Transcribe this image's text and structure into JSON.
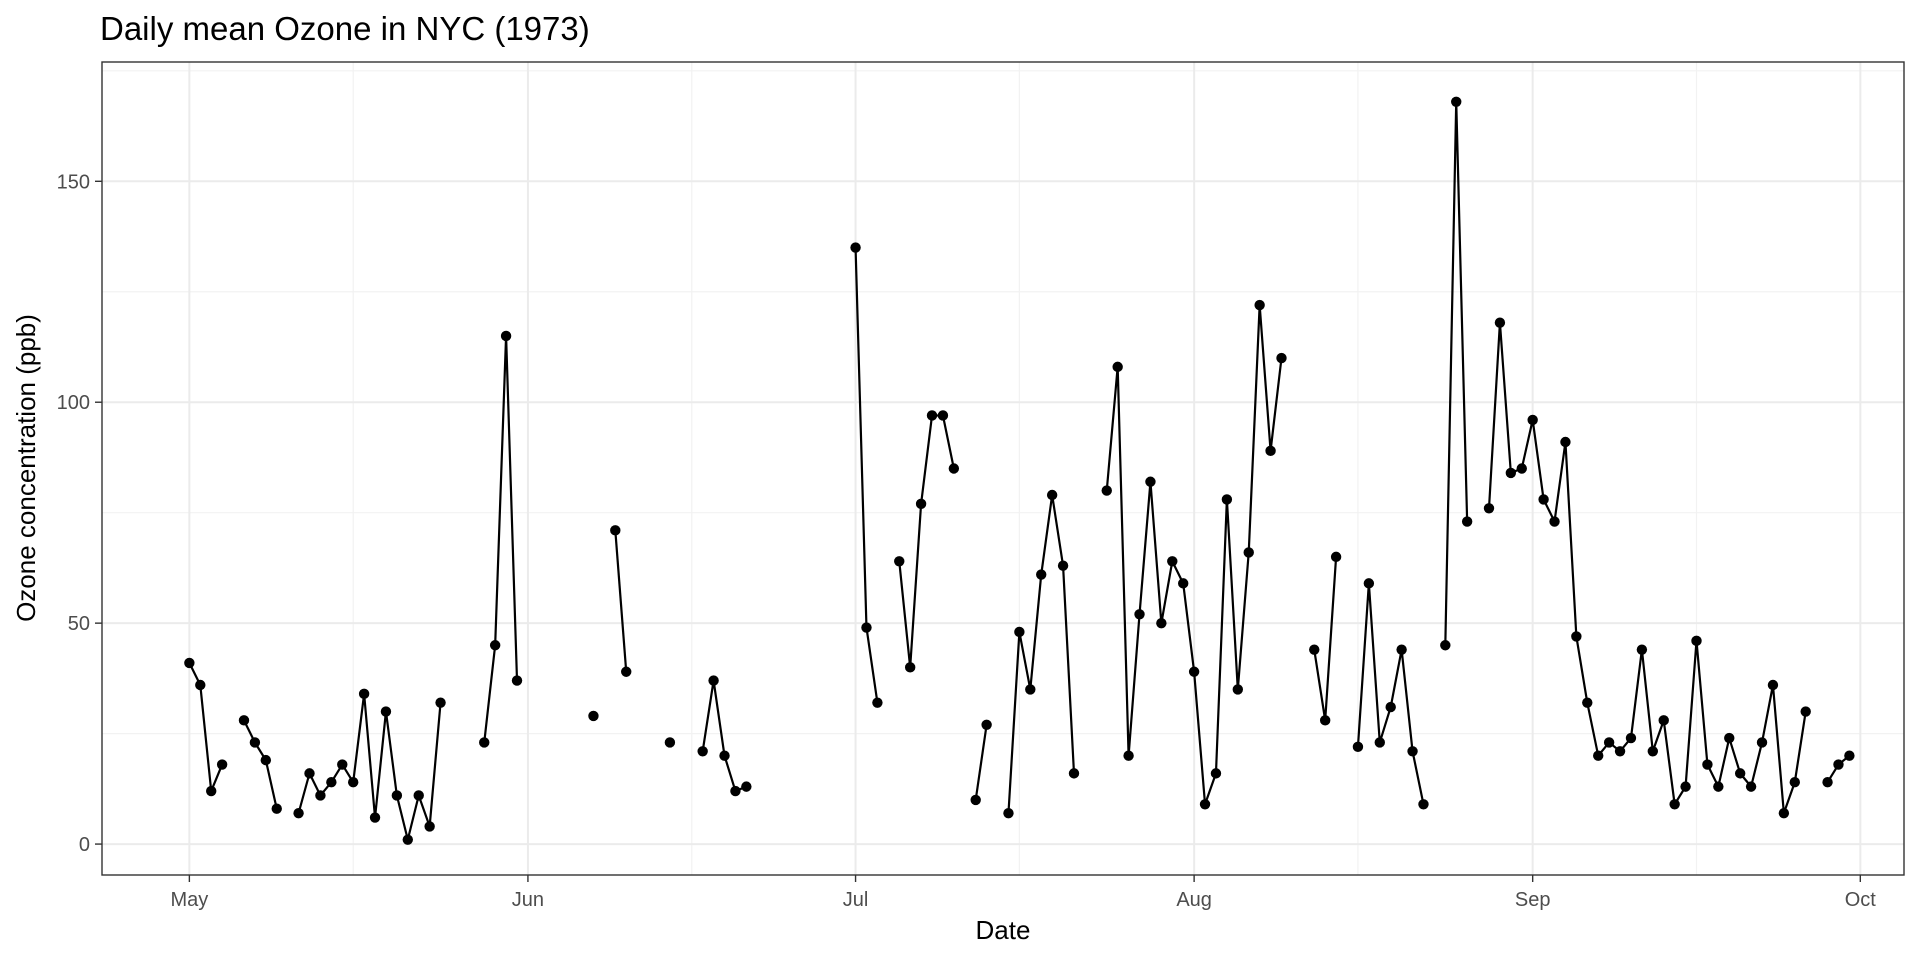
{
  "chart_data": {
    "type": "line",
    "title": "Daily mean Ozone in NYC (1973)",
    "xlabel": "Date",
    "ylabel": "Ozone concentration (ppb)",
    "x_tick_labels": [
      "May",
      "Jun",
      "Jul",
      "Aug",
      "Sep",
      "Oct"
    ],
    "y_tick_labels": [
      "0",
      "50",
      "100",
      "150"
    ],
    "y_ticks": [
      0,
      50,
      100,
      150
    ],
    "xlim": [
      "1973-04-23",
      "1973-10-05"
    ],
    "ylim": [
      -7,
      177
    ],
    "grid": true,
    "legend": "none",
    "colors": {
      "line": "#000000",
      "point": "#000000",
      "grid": "#ebebeb",
      "border": "#333333"
    },
    "series": [
      {
        "dates": [
          "1973-05-01",
          "1973-05-02",
          "1973-05-03",
          "1973-05-04",
          "1973-05-05",
          "1973-05-06",
          "1973-05-07",
          "1973-05-08",
          "1973-05-09",
          "1973-05-10",
          "1973-05-11",
          "1973-05-12",
          "1973-05-13",
          "1973-05-14",
          "1973-05-15",
          "1973-05-16",
          "1973-05-17",
          "1973-05-18",
          "1973-05-19",
          "1973-05-20",
          "1973-05-21",
          "1973-05-22",
          "1973-05-23",
          "1973-05-24",
          "1973-05-25",
          "1973-05-26",
          "1973-05-27",
          "1973-05-28",
          "1973-05-29",
          "1973-05-30",
          "1973-05-31",
          "1973-06-01",
          "1973-06-02",
          "1973-06-03",
          "1973-06-04",
          "1973-06-05",
          "1973-06-06",
          "1973-06-07",
          "1973-06-08",
          "1973-06-09",
          "1973-06-10",
          "1973-06-11",
          "1973-06-12",
          "1973-06-13",
          "1973-06-14",
          "1973-06-15",
          "1973-06-16",
          "1973-06-17",
          "1973-06-18",
          "1973-06-19",
          "1973-06-20",
          "1973-06-21",
          "1973-06-22",
          "1973-06-23",
          "1973-06-24",
          "1973-06-25",
          "1973-06-26",
          "1973-06-27",
          "1973-06-28",
          "1973-06-29",
          "1973-06-30",
          "1973-07-01",
          "1973-07-02",
          "1973-07-03",
          "1973-07-04",
          "1973-07-05",
          "1973-07-06",
          "1973-07-07",
          "1973-07-08",
          "1973-07-09",
          "1973-07-10",
          "1973-07-11",
          "1973-07-12",
          "1973-07-13",
          "1973-07-14",
          "1973-07-15",
          "1973-07-16",
          "1973-07-17",
          "1973-07-18",
          "1973-07-19",
          "1973-07-20",
          "1973-07-21",
          "1973-07-22",
          "1973-07-23",
          "1973-07-24",
          "1973-07-25",
          "1973-07-26",
          "1973-07-27",
          "1973-07-28",
          "1973-07-29",
          "1973-07-30",
          "1973-07-31",
          "1973-08-01",
          "1973-08-02",
          "1973-08-03",
          "1973-08-04",
          "1973-08-05",
          "1973-08-06",
          "1973-08-07",
          "1973-08-08",
          "1973-08-09",
          "1973-08-10",
          "1973-08-11",
          "1973-08-12",
          "1973-08-13",
          "1973-08-14",
          "1973-08-15",
          "1973-08-16",
          "1973-08-17",
          "1973-08-18",
          "1973-08-19",
          "1973-08-20",
          "1973-08-21",
          "1973-08-22",
          "1973-08-23",
          "1973-08-24",
          "1973-08-25",
          "1973-08-26",
          "1973-08-27",
          "1973-08-28",
          "1973-08-29",
          "1973-08-30",
          "1973-08-31",
          "1973-09-01",
          "1973-09-02",
          "1973-09-03",
          "1973-09-04",
          "1973-09-05",
          "1973-09-06",
          "1973-09-07",
          "1973-09-08",
          "1973-09-09",
          "1973-09-10",
          "1973-09-11",
          "1973-09-12",
          "1973-09-13",
          "1973-09-14",
          "1973-09-15",
          "1973-09-16",
          "1973-09-17",
          "1973-09-18",
          "1973-09-19",
          "1973-09-20",
          "1973-09-21",
          "1973-09-22",
          "1973-09-23",
          "1973-09-24",
          "1973-09-25",
          "1973-09-26",
          "1973-09-27",
          "1973-09-28",
          "1973-09-29",
          "1973-09-30"
        ],
        "values": [
          41,
          36,
          12,
          18,
          null,
          28,
          23,
          19,
          8,
          null,
          7,
          16,
          11,
          14,
          18,
          14,
          34,
          6,
          30,
          11,
          1,
          11,
          4,
          32,
          null,
          null,
          null,
          23,
          45,
          115,
          37,
          null,
          null,
          null,
          null,
          null,
          null,
          29,
          null,
          71,
          39,
          null,
          null,
          null,
          23,
          null,
          null,
          21,
          37,
          20,
          12,
          13,
          null,
          null,
          null,
          null,
          null,
          null,
          null,
          null,
          null,
          135,
          49,
          32,
          null,
          64,
          40,
          77,
          97,
          97,
          85,
          null,
          10,
          27,
          null,
          7,
          48,
          35,
          61,
          79,
          63,
          16,
          null,
          null,
          80,
          108,
          20,
          52,
          82,
          50,
          64,
          59,
          39,
          9,
          16,
          78,
          35,
          66,
          122,
          89,
          110,
          null,
          null,
          44,
          28,
          65,
          null,
          22,
          59,
          23,
          31,
          44,
          21,
          9,
          null,
          45,
          168,
          73,
          null,
          76,
          118,
          84,
          85,
          96,
          78,
          73,
          91,
          47,
          32,
          20,
          23,
          21,
          24,
          44,
          21,
          28,
          9,
          13,
          46,
          18,
          13,
          24,
          16,
          13,
          23,
          36,
          7,
          14,
          30,
          null,
          14,
          18,
          20
        ]
      }
    ]
  }
}
